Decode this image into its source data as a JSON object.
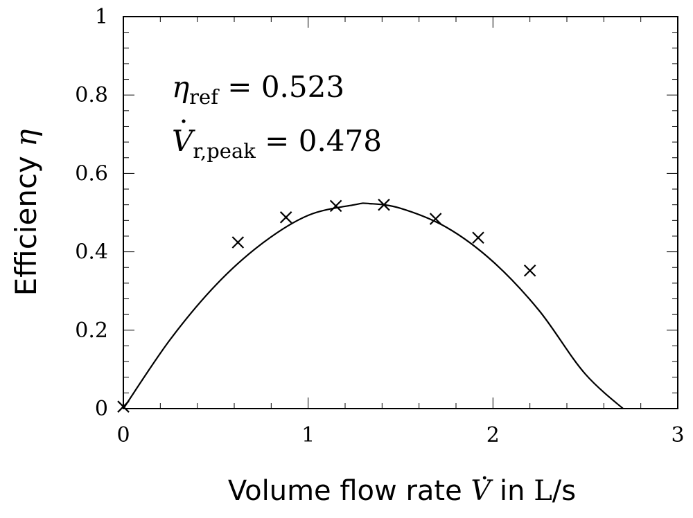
{
  "chart_data": {
    "type": "scatter",
    "title": "",
    "xlabel": {
      "prefix": "Volume flow rate ",
      "symbol": "V",
      "mid": " in ",
      "unit": "L",
      "suffix": "/s"
    },
    "ylabel": {
      "text": "Efficiency ",
      "symbol": "η"
    },
    "xlim": [
      0,
      3
    ],
    "ylim": [
      0,
      1
    ],
    "x_ticks": [
      "0",
      "1",
      "2",
      "3"
    ],
    "y_ticks": [
      "0",
      "0.2",
      "0.4",
      "0.6",
      "0.8",
      "1"
    ],
    "grid": false,
    "series": [
      {
        "kind": "markers",
        "marker": "x",
        "x": [
          0.0,
          0.62,
          0.88,
          1.15,
          1.41,
          1.69,
          1.92,
          2.2
        ],
        "y": [
          0.005,
          0.424,
          0.488,
          0.517,
          0.52,
          0.484,
          0.436,
          0.352
        ]
      },
      {
        "kind": "curve",
        "x": [
          0.0,
          0.25,
          0.5,
          0.75,
          1.0,
          1.25,
          1.33,
          1.5,
          1.75,
          2.0,
          2.25,
          2.5,
          2.75
        ],
        "y": [
          0.0,
          0.174,
          0.315,
          0.421,
          0.493,
          0.52,
          0.523,
          0.511,
          0.462,
          0.375,
          0.25,
          0.088,
          -0.018
        ]
      }
    ],
    "annotations": [
      {
        "symbol": "η",
        "subscript": "ref",
        "value": " = 0.523"
      },
      {
        "symbol": "V",
        "subscript": "r,peak",
        "value": " = 0.478"
      }
    ]
  }
}
